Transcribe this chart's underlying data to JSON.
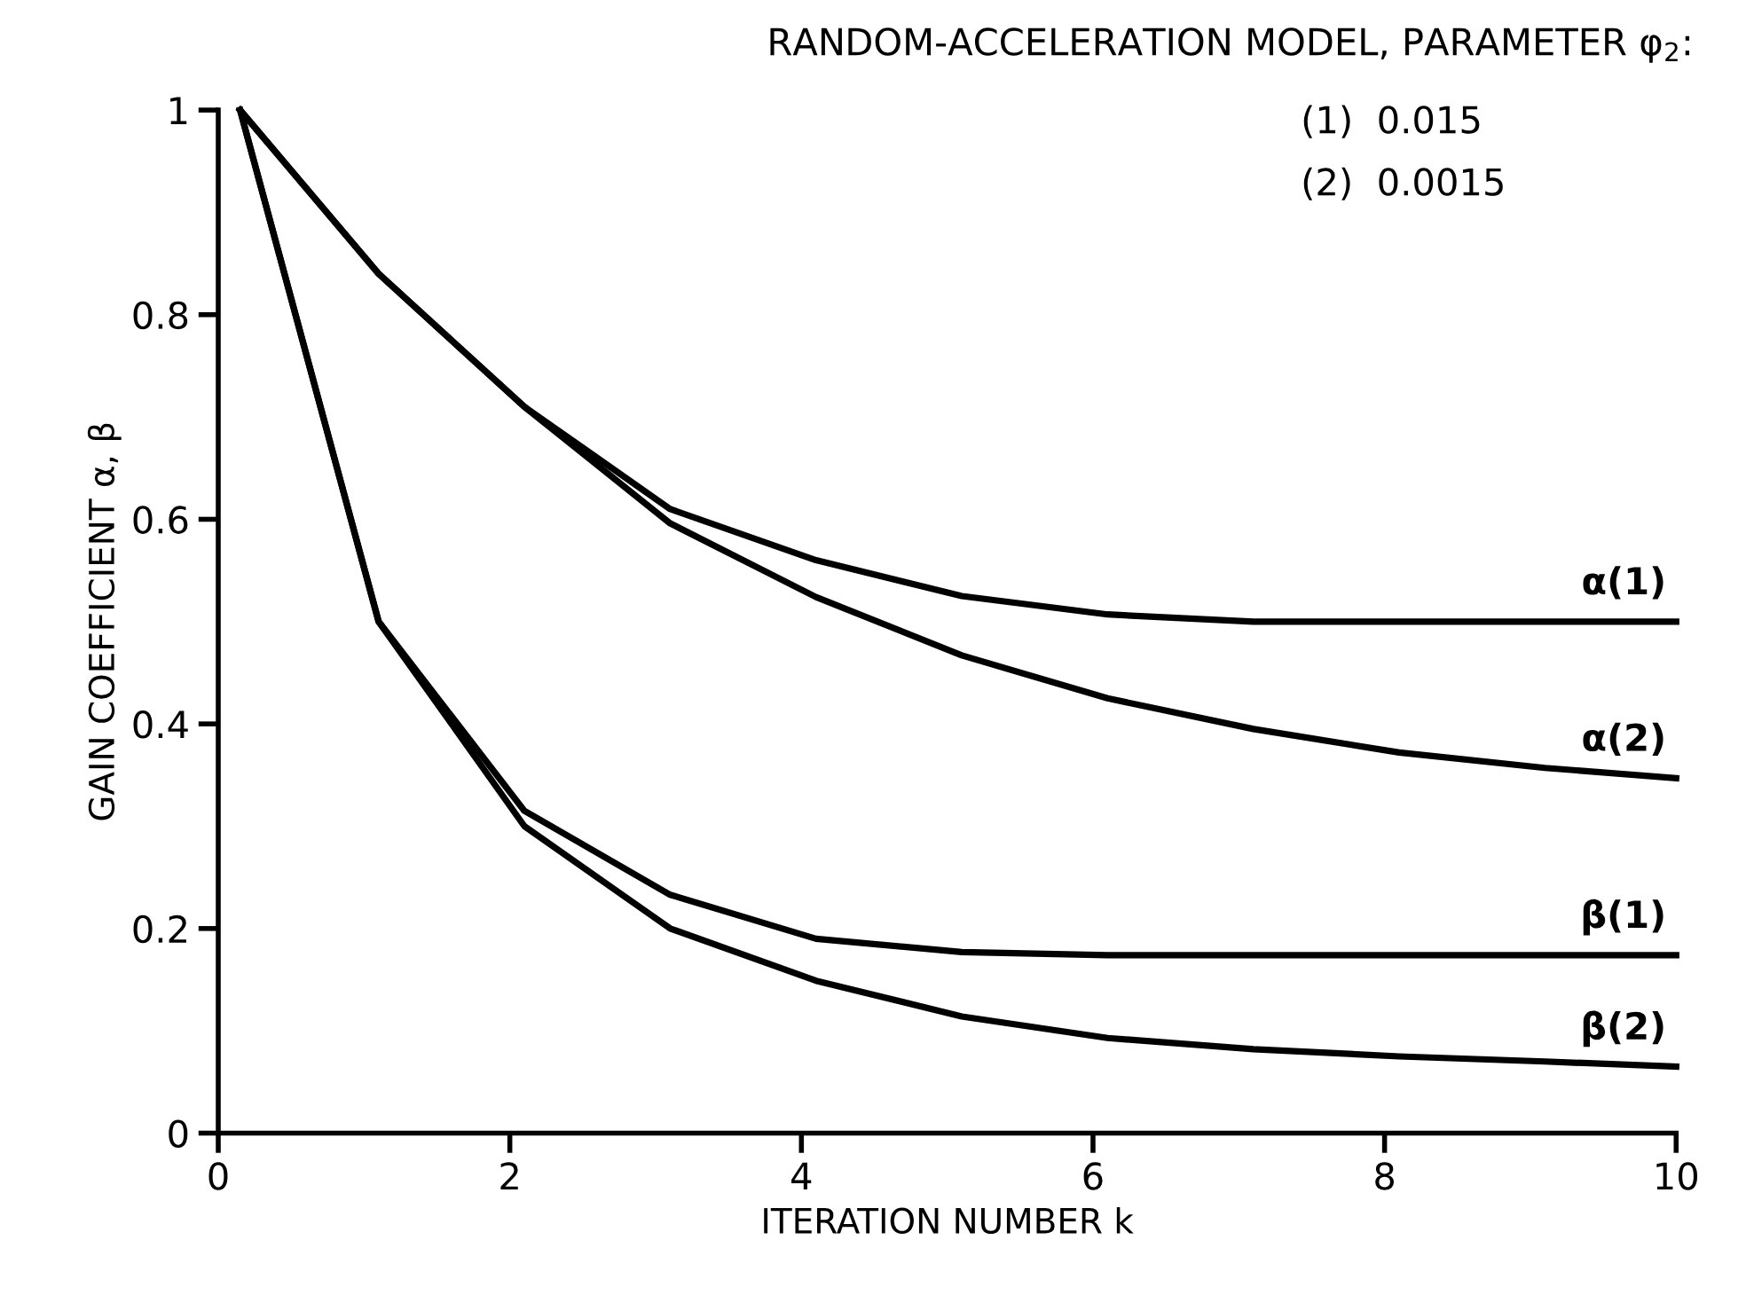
{
  "chart_data": {
    "type": "line",
    "title": "RANDOM-ACCELERATION MODEL, PARAMETER φ$_{2}$:",
    "xlabel": "ITERATION NUMBER k",
    "ylabel": "GAIN COEFFICIENT α, β",
    "annotations": [
      "(1)  0.015",
      "(2)  0.0015"
    ],
    "x": [
      0.15,
      1.1,
      2.1,
      3.1,
      4.1,
      5.1,
      6.1,
      7.1,
      8.1,
      9.1,
      10
    ],
    "series": [
      {
        "name": "α(1)",
        "color": "#000000",
        "values": [
          1.0,
          0.84,
          0.71,
          0.61,
          0.56,
          0.525,
          0.507,
          0.5,
          0.5,
          0.5,
          0.5
        ]
      },
      {
        "name": "α(2)",
        "color": "#000000",
        "values": [
          1.0,
          0.84,
          0.71,
          0.596,
          0.524,
          0.467,
          0.425,
          0.395,
          0.372,
          0.357,
          0.347
        ]
      },
      {
        "name": "β(1)",
        "color": "#000000",
        "values": [
          1.0,
          0.5,
          0.315,
          0.233,
          0.19,
          0.177,
          0.174,
          0.174,
          0.174,
          0.174,
          0.174
        ]
      },
      {
        "name": "β(2)",
        "color": "#000000",
        "values": [
          1.0,
          0.5,
          0.3,
          0.2,
          0.149,
          0.114,
          0.093,
          0.082,
          0.075,
          0.07,
          0.065
        ]
      }
    ],
    "xlim": [
      0,
      10
    ],
    "ylim": [
      0,
      1
    ],
    "xticks": [
      0,
      2,
      4,
      6,
      8,
      10
    ],
    "yticks": [
      0,
      0.2,
      0.4,
      0.6,
      0.8,
      1
    ],
    "grid": false,
    "legend": false,
    "marker": "none",
    "line_style": "solid"
  }
}
